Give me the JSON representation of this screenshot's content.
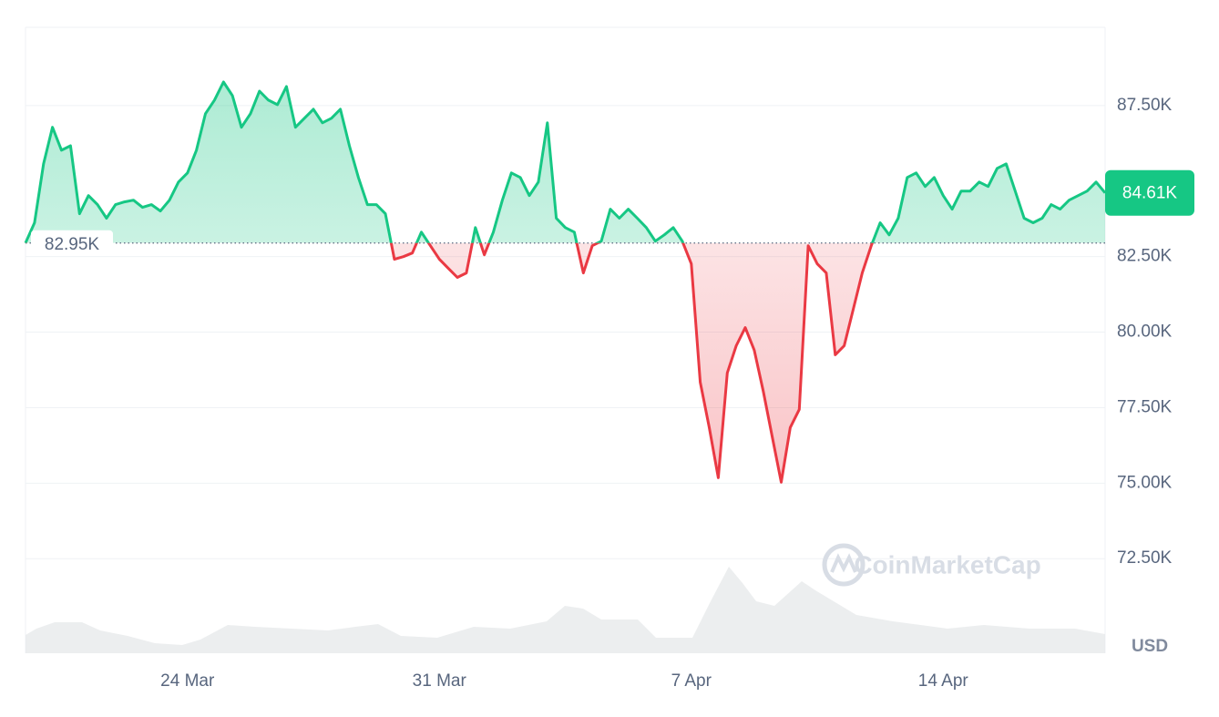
{
  "chart_data": {
    "type": "line",
    "x": [
      null,
      null,
      null,
      null,
      null,
      null,
      null,
      null,
      null,
      null,
      null,
      null,
      null,
      null,
      null,
      null,
      null,
      null,
      "24 Mar",
      null,
      null,
      null,
      null,
      null,
      null,
      null,
      null,
      null,
      null,
      null,
      null,
      null,
      null,
      null,
      null,
      null,
      null,
      null,
      null,
      null,
      null,
      null,
      null,
      null,
      null,
      null,
      "31 Mar",
      null,
      null,
      null,
      null,
      null,
      null,
      null,
      null,
      null,
      null,
      null,
      null,
      null,
      null,
      null,
      null,
      null,
      null,
      null,
      null,
      null,
      null,
      null,
      null,
      null,
      null,
      null,
      "7 Apr",
      null,
      null,
      null,
      null,
      null,
      null,
      null,
      null,
      null,
      null,
      null,
      null,
      null,
      null,
      null,
      null,
      null,
      null,
      null,
      null,
      null,
      null,
      null,
      null,
      null,
      null,
      null,
      "14 Apr",
      null,
      null,
      null,
      null,
      null,
      null,
      null,
      null,
      null,
      null,
      null,
      null,
      null,
      null,
      null,
      null,
      null,
      null
    ],
    "values": [
      82950,
      83620,
      85570,
      86780,
      86020,
      86170,
      83920,
      84520,
      84220,
      83770,
      84220,
      84310,
      84370,
      84130,
      84220,
      84010,
      84370,
      84970,
      85270,
      86020,
      87230,
      87680,
      88280,
      87830,
      86780,
      87230,
      87980,
      87680,
      87530,
      88130,
      86780,
      87080,
      87380,
      86930,
      87080,
      87380,
      86170,
      85120,
      84220,
      84220,
      83920,
      82410,
      82500,
      82620,
      83310,
      82860,
      82410,
      82110,
      81810,
      81960,
      83460,
      82560,
      83310,
      84370,
      85270,
      85120,
      84520,
      84970,
      86930,
      83770,
      83460,
      83310,
      81960,
      82860,
      83010,
      84070,
      83770,
      84070,
      83770,
      83460,
      83010,
      83220,
      83460,
      83010,
      82260,
      78340,
      76840,
      75180,
      78650,
      79550,
      80150,
      79400,
      78040,
      76540,
      75030,
      76840,
      77440,
      82860,
      82260,
      81960,
      79250,
      79550,
      80750,
      81960,
      82860,
      83620,
      83220,
      83770,
      85120,
      85270,
      84820,
      85120,
      84520,
      84070,
      84670,
      84670,
      84970,
      84820,
      85420,
      85570,
      84670,
      83770,
      83620,
      83770,
      84220,
      84070,
      84370,
      84520,
      84670,
      84970,
      84610
    ],
    "color_up": "#16c784",
    "color_down": "#ea3943",
    "ylim": [
      69370,
      90090
    ],
    "yticks": [
      {
        "value": 72500,
        "label": "72.50K"
      },
      {
        "value": 75000,
        "label": "75.00K"
      },
      {
        "value": 77500,
        "label": "77.50K"
      },
      {
        "value": 80000,
        "label": "80.00K"
      },
      {
        "value": 82500,
        "label": "82.50K"
      },
      {
        "value": 87500,
        "label": "87.50K"
      }
    ],
    "grid": true,
    "baseline": {
      "value": 82950,
      "label": "82.95K"
    },
    "current": {
      "value": 84610,
      "label": "84.61K"
    },
    "ylabel": "USD",
    "watermark": "CoinMarketCap"
  }
}
